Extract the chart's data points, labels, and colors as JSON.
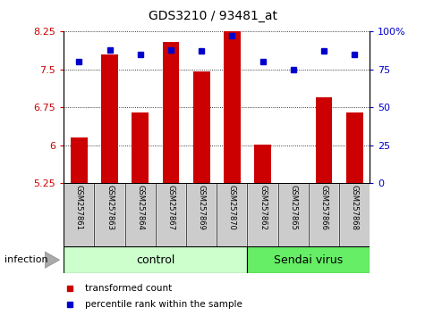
{
  "title": "GDS3210 / 93481_at",
  "samples": [
    "GSM257861",
    "GSM257863",
    "GSM257864",
    "GSM257867",
    "GSM257869",
    "GSM257870",
    "GSM257862",
    "GSM257865",
    "GSM257866",
    "GSM257868"
  ],
  "bar_values": [
    6.15,
    7.8,
    6.65,
    8.05,
    7.47,
    8.4,
    6.02,
    5.22,
    6.95,
    6.65
  ],
  "percentile_values": [
    80,
    88,
    85,
    88,
    87,
    97,
    80,
    75,
    87,
    85
  ],
  "ylim_left": [
    5.25,
    8.25
  ],
  "ylim_right": [
    0,
    100
  ],
  "yticks_left": [
    5.25,
    6.0,
    6.75,
    7.5,
    8.25
  ],
  "yticks_right": [
    0,
    25,
    50,
    75,
    100
  ],
  "ytick_labels_left": [
    "5.25",
    "6",
    "6.75",
    "7.5",
    "8.25"
  ],
  "ytick_labels_right": [
    "0",
    "25",
    "50",
    "75",
    "100%"
  ],
  "bar_color": "#cc0000",
  "dot_color": "#0000cc",
  "control_color": "#ccffcc",
  "virus_color": "#66ee66",
  "sample_box_color": "#cccccc",
  "infection_label": "infection",
  "group_label_control": "control",
  "group_label_virus": "Sendai virus",
  "legend_bar_label": "transformed count",
  "legend_dot_label": "percentile rank within the sample",
  "n_control": 6,
  "n_virus": 4
}
